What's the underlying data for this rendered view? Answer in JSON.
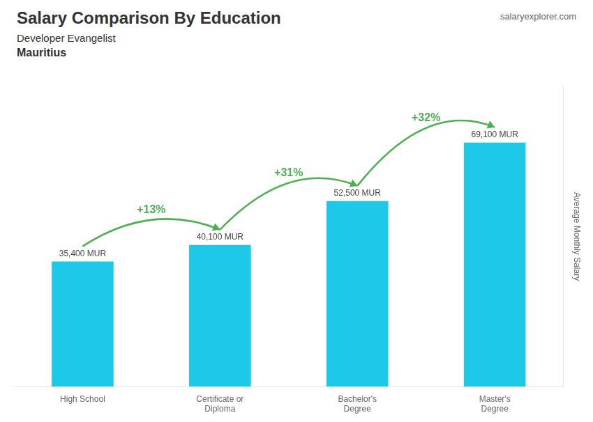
{
  "chart_data": {
    "type": "bar",
    "title": "Salary Comparison By Education",
    "subtitle": [
      "Developer Evangelist",
      "Mauritius"
    ],
    "watermark": "salaryexplorer.com",
    "ylabel": "Average Monthly Salary",
    "categories": [
      "High School",
      "Certificate or\nDiploma",
      "Bachelor's\nDegree",
      "Master's\nDegree"
    ],
    "values": [
      35400,
      40100,
      52500,
      69100
    ],
    "value_labels": [
      "35,400 MUR",
      "40,100 MUR",
      "52,500 MUR",
      "69,100 MUR"
    ],
    "data_labels": true,
    "annotations": [
      "+13%",
      "+31%",
      "+32%"
    ],
    "color": "#1EC8E8",
    "ylim": [
      0,
      85000
    ],
    "grid": false,
    "tick_labels": "x"
  }
}
